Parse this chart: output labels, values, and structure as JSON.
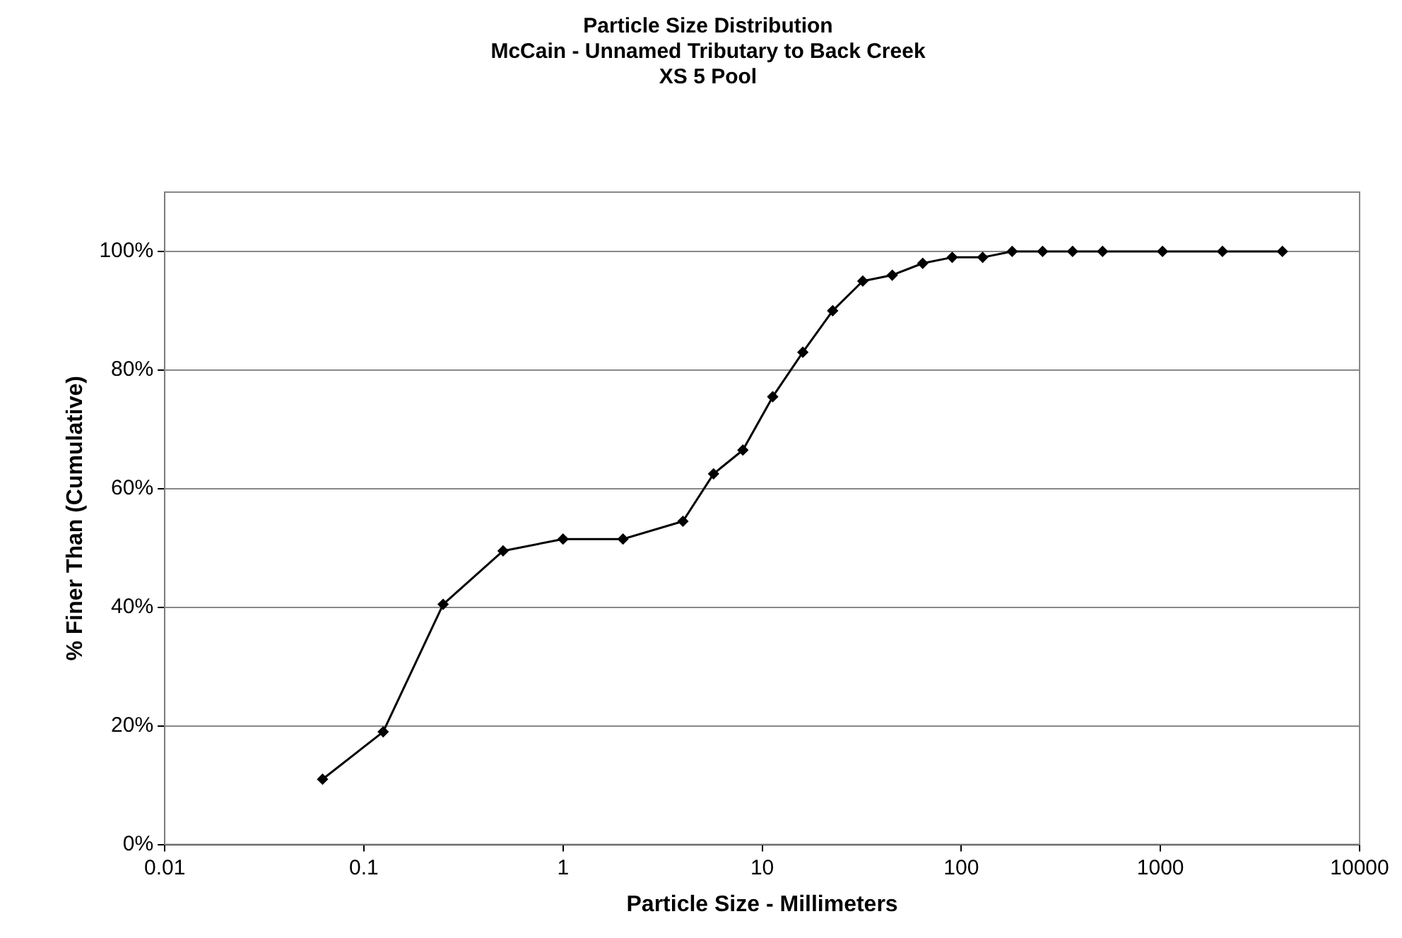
{
  "chart_data": {
    "type": "line",
    "title": "Particle Size Distribution\nMcCain - Unnamed Tributary to Back Creek\nXS 5 Pool",
    "xlabel": "Particle Size - Millimeters",
    "ylabel": "% Finer Than (Cumulative)",
    "x": [
      0.062,
      0.125,
      0.25,
      0.5,
      1,
      2,
      4,
      5.7,
      8,
      11.3,
      16,
      22.6,
      32,
      45,
      64,
      90,
      128,
      180,
      256,
      362,
      512,
      1024,
      2048,
      4096
    ],
    "series": [
      {
        "color": "#000000",
        "values": [
          11,
          19,
          40.5,
          49.5,
          51.5,
          51.5,
          54.5,
          62.5,
          66.5,
          75.5,
          83,
          90,
          95,
          96,
          98,
          99,
          99,
          100,
          100,
          100,
          100,
          100,
          100,
          100
        ]
      }
    ],
    "log": "x",
    "xlim": [
      0.01,
      10000
    ],
    "xticks": [
      0.01,
      0.1,
      1,
      10,
      100,
      1000,
      10000
    ],
    "ylim": [
      0,
      110
    ],
    "yticks": [
      {
        "value": 0,
        "label": "0%"
      },
      {
        "value": 20,
        "label": "20%"
      },
      {
        "value": 40,
        "label": "40%"
      },
      {
        "value": 60,
        "label": "60%"
      },
      {
        "value": 80,
        "label": "80%"
      },
      {
        "value": 100,
        "label": "100%"
      }
    ],
    "grid": "y",
    "legend": false,
    "marker": "diamond",
    "line_style": "solid"
  }
}
